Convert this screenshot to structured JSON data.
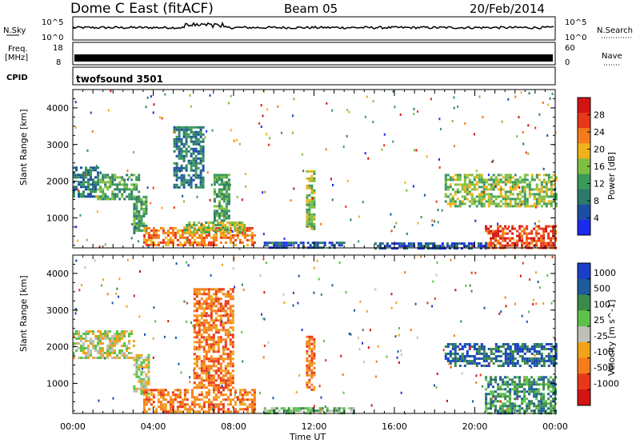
{
  "header": {
    "station": "Dome C East (fitACF)",
    "beam": "Beam 05",
    "date": "20/Feb/2014"
  },
  "top_panels": {
    "nsky_label": "N.Sky",
    "nsky_tick_top": "10^5",
    "nsky_tick_bottom": "10^0",
    "nsearch_label": "N.Search",
    "nsearch_tick_top": "10^5",
    "nsearch_tick_bottom": "10^0",
    "freq_label_line1": "Freq.",
    "freq_label_line2": "[MHz]",
    "freq_tick_top": "18",
    "freq_tick_bottom": "8",
    "nave_label": "Nave",
    "nave_tick_top": "60",
    "nave_tick_bottom": "0",
    "cpid_label": "CPID",
    "cpid_value": "twofsound 3501"
  },
  "chart_data": [
    {
      "type": "heatmap",
      "name": "power-panel",
      "xlabel": "Time UT",
      "ylabel": "Slant Range [km]",
      "xlim": [
        0,
        24
      ],
      "ylim": [
        180,
        4500
      ],
      "x_tick_labels": [
        "00:00",
        "04:00",
        "08:00",
        "12:00",
        "16:00",
        "20:00",
        "00:00"
      ],
      "x_ticks": [
        0,
        4,
        8,
        12,
        16,
        20,
        24
      ],
      "y_ticks": [
        1000,
        2000,
        3000,
        4000
      ],
      "colorbar": {
        "label": "Power [dB]",
        "range": [
          0,
          32
        ],
        "ticks": [
          4,
          8,
          12,
          16,
          20,
          24,
          28
        ],
        "colors": [
          "#1a2bf0",
          "#1c4fa3",
          "#2b7a6a",
          "#3a9a5a",
          "#7fbf3f",
          "#f2b21a",
          "#f57c1a",
          "#e8381a",
          "#d21414"
        ]
      },
      "regions": [
        {
          "t0": 0.0,
          "t1": 1.2,
          "r0": 1600,
          "r1": 2400,
          "level": 2
        },
        {
          "t0": 1.2,
          "t1": 3.3,
          "r0": 1500,
          "r1": 2200,
          "level": 3
        },
        {
          "t0": 3.0,
          "t1": 3.6,
          "r0": 600,
          "r1": 1600,
          "level": 3
        },
        {
          "t0": 3.5,
          "t1": 9.0,
          "r0": 250,
          "r1": 750,
          "level": 6
        },
        {
          "t0": 5.5,
          "t1": 8.5,
          "r0": 600,
          "r1": 900,
          "level": 4
        },
        {
          "t0": 5.0,
          "t1": 6.5,
          "r0": 1800,
          "r1": 3500,
          "level": 2
        },
        {
          "t0": 7.0,
          "t1": 7.8,
          "r0": 900,
          "r1": 2200,
          "level": 3
        },
        {
          "t0": 11.6,
          "t1": 12.0,
          "r0": 700,
          "r1": 2300,
          "level": 4
        },
        {
          "t0": 9.5,
          "t1": 13.5,
          "r0": 180,
          "r1": 350,
          "level": 1
        },
        {
          "t0": 18.5,
          "t1": 24.0,
          "r0": 1300,
          "r1": 2200,
          "level": 4
        },
        {
          "t0": 20.5,
          "t1": 24.0,
          "r0": 200,
          "r1": 800,
          "level": 7
        },
        {
          "t0": 15.0,
          "t1": 20.5,
          "r0": 180,
          "r1": 330,
          "level": 1
        }
      ]
    },
    {
      "type": "heatmap",
      "name": "velocity-panel",
      "xlabel": "Time UT",
      "ylabel": "Slant Range [km]",
      "xlim": [
        0,
        24
      ],
      "ylim": [
        180,
        4500
      ],
      "x_tick_labels": [
        "00:00",
        "04:00",
        "08:00",
        "12:00",
        "16:00",
        "20:00",
        "00:00"
      ],
      "x_ticks": [
        0,
        4,
        8,
        12,
        16,
        20,
        24
      ],
      "y_ticks": [
        1000,
        2000,
        3000,
        4000
      ],
      "colorbar": {
        "label": "Velocity [m s^-1]",
        "ticks": [
          "1000",
          "500",
          "100",
          "25",
          "-25",
          "-100",
          "-500",
          "-1000"
        ],
        "colors": [
          "#1a3fc8",
          "#1c5c9a",
          "#3b8a4a",
          "#5cc24a",
          "#c0c0b8",
          "#f2a31a",
          "#f57c1a",
          "#e8381a",
          "#d21414"
        ]
      },
      "regions": [
        {
          "t0": 0.0,
          "t1": 3.0,
          "r0": 1700,
          "r1": 2450,
          "level": 4
        },
        {
          "t0": 3.0,
          "t1": 3.8,
          "r0": 700,
          "r1": 1800,
          "level": 4
        },
        {
          "t0": 3.5,
          "t1": 9.0,
          "r0": 200,
          "r1": 850,
          "level": 6
        },
        {
          "t0": 6.0,
          "t1": 8.0,
          "r0": 900,
          "r1": 3600,
          "level": 6
        },
        {
          "t0": 11.6,
          "t1": 12.0,
          "r0": 800,
          "r1": 2300,
          "level": 6
        },
        {
          "t0": 18.5,
          "t1": 24.0,
          "r0": 1500,
          "r1": 2100,
          "level": 1
        },
        {
          "t0": 20.5,
          "t1": 24.0,
          "r0": 200,
          "r1": 1200,
          "level": 2
        },
        {
          "t0": 9.5,
          "t1": 14.0,
          "r0": 180,
          "r1": 350,
          "level": 3
        }
      ]
    }
  ]
}
